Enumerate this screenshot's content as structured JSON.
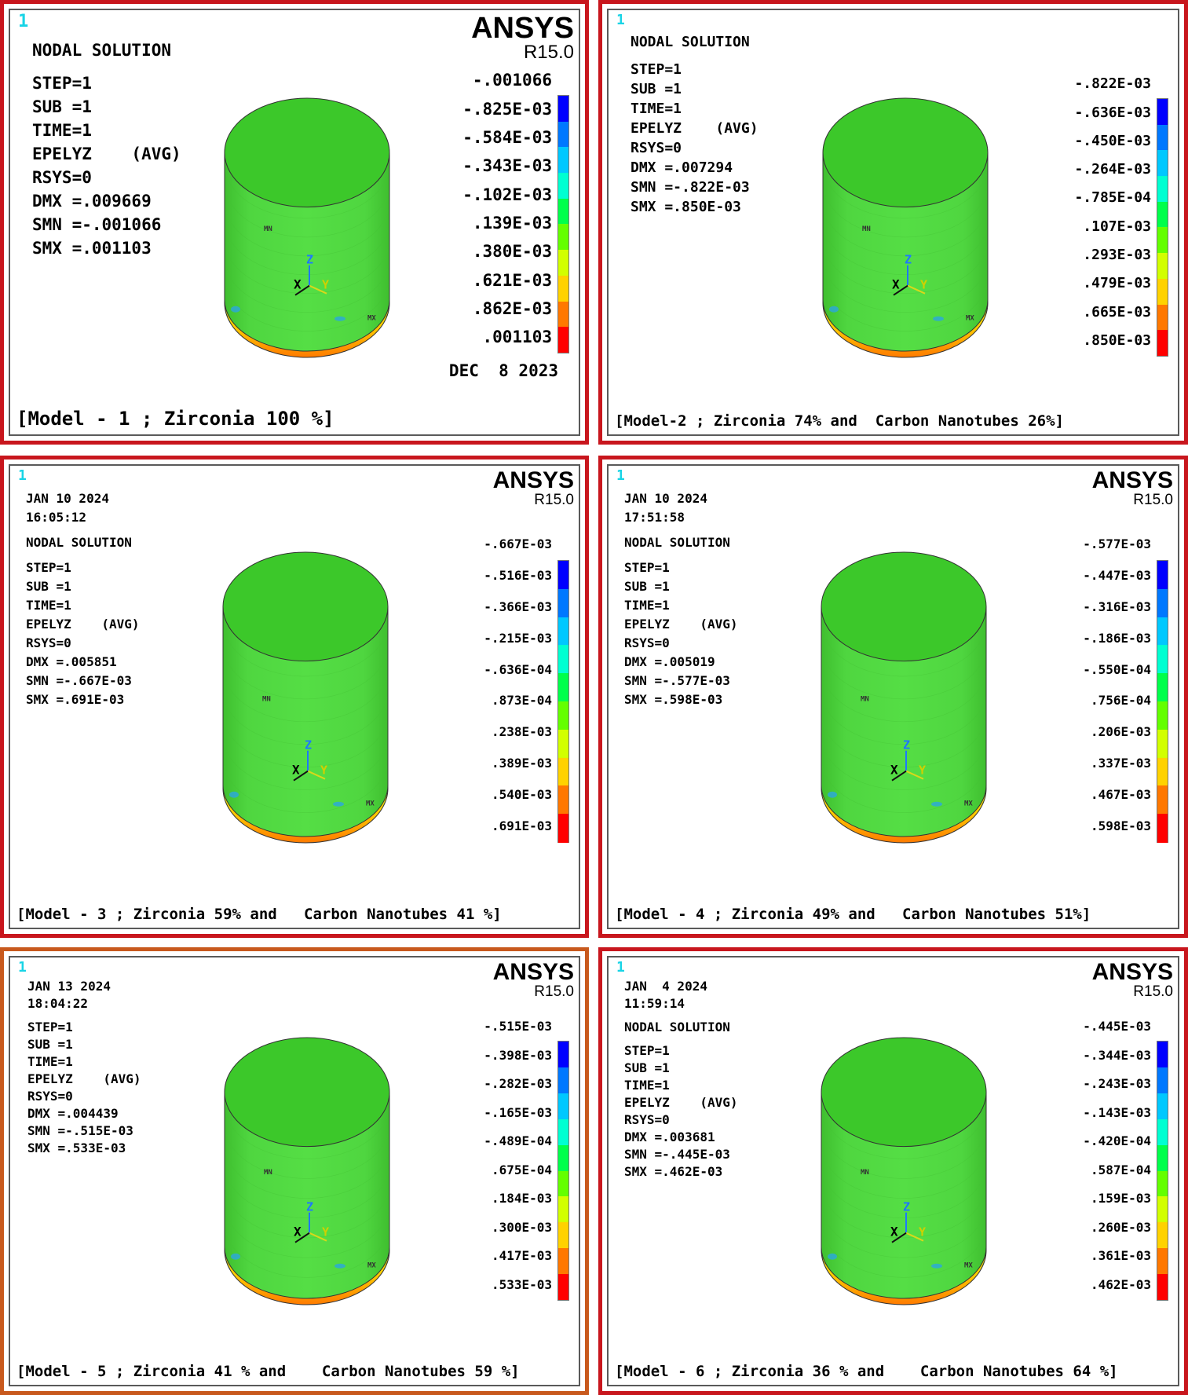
{
  "colors": {
    "panel_border": "#c8161d",
    "panel_border_alt": "#c8591d",
    "window_number": "#18d4e6",
    "contour_bands": [
      "#0000ff",
      "#0078ff",
      "#00c8ff",
      "#00ffd2",
      "#00ff4b",
      "#64ff00",
      "#d2ff00",
      "#ffd200",
      "#ff7800",
      "#ff0000"
    ]
  },
  "panels": [
    {
      "window_number": "1",
      "brand": "ANSYS",
      "release": "R15.0",
      "date": "",
      "time": "",
      "title": "NODAL SOLUTION",
      "lines": [
        "STEP=1",
        "SUB =1",
        "TIME=1",
        "EPELYZ    (AVG)",
        "RSYS=0",
        "DMX =.009669",
        "SMN =-.001066",
        "SMX =.001103"
      ],
      "legend": [
        "-.001066",
        "-.825E-03",
        "-.584E-03",
        "-.343E-03",
        "-.102E-03",
        ".139E-03",
        ".380E-03",
        ".621E-03",
        ".862E-03",
        ".001103"
      ],
      "bottom_date": "DEC  8 2023",
      "caption": "[Model - 1 ; Zirconia 100 %]",
      "tag_mn": "MN",
      "tag_mx": "MX",
      "axis_x": "X",
      "axis_y": "Y",
      "axis_z": "Z"
    },
    {
      "window_number": "1",
      "brand": "",
      "release": "",
      "date": "",
      "time": "",
      "title": "NODAL SOLUTION",
      "lines": [
        "STEP=1",
        "SUB =1",
        "TIME=1",
        "EPELYZ    (AVG)",
        "RSYS=0",
        "DMX =.007294",
        "SMN =-.822E-03",
        "SMX =.850E-03"
      ],
      "legend": [
        "-.822E-03",
        "-.636E-03",
        "-.450E-03",
        "-.264E-03",
        "-.785E-04",
        ".107E-03",
        ".293E-03",
        ".479E-03",
        ".665E-03",
        ".850E-03"
      ],
      "bottom_date": "",
      "caption": "[Model-2 ; Zirconia 74% and  Carbon Nanotubes 26%]",
      "tag_mn": "MN",
      "tag_mx": "MX",
      "axis_x": "X",
      "axis_y": "Y",
      "axis_z": "Z"
    },
    {
      "window_number": "1",
      "brand": "ANSYS",
      "release": "R15.0",
      "date": "JAN 10 2024",
      "time": "16:05:12",
      "title": "NODAL SOLUTION",
      "lines": [
        "STEP=1",
        "SUB =1",
        "TIME=1",
        "EPELYZ    (AVG)",
        "RSYS=0",
        "DMX =.005851",
        "SMN =-.667E-03",
        "SMX =.691E-03"
      ],
      "legend": [
        "-.667E-03",
        "-.516E-03",
        "-.366E-03",
        "-.215E-03",
        "-.636E-04",
        ".873E-04",
        ".238E-03",
        ".389E-03",
        ".540E-03",
        ".691E-03"
      ],
      "bottom_date": "",
      "caption": "[Model - 3 ; Zirconia 59% and   Carbon Nanotubes 41 %]",
      "tag_mn": "MN",
      "tag_mx": "MX",
      "axis_x": "X",
      "axis_y": "Y",
      "axis_z": "Z"
    },
    {
      "window_number": "1",
      "brand": "ANSYS",
      "release": "R15.0",
      "date": "JAN 10 2024",
      "time": "17:51:58",
      "title": "NODAL SOLUTION",
      "lines": [
        "STEP=1",
        "SUB =1",
        "TIME=1",
        "EPELYZ    (AVG)",
        "RSYS=0",
        "DMX =.005019",
        "SMN =-.577E-03",
        "SMX =.598E-03"
      ],
      "legend": [
        "-.577E-03",
        "-.447E-03",
        "-.316E-03",
        "-.186E-03",
        "-.550E-04",
        ".756E-04",
        ".206E-03",
        ".337E-03",
        ".467E-03",
        ".598E-03"
      ],
      "bottom_date": "",
      "caption": "[Model - 4 ; Zirconia 49% and   Carbon Nanotubes 51%]",
      "tag_mn": "MN",
      "tag_mx": "MX",
      "axis_x": "X",
      "axis_y": "Y",
      "axis_z": "Z"
    },
    {
      "window_number": "1",
      "brand": "ANSYS",
      "release": "R15.0",
      "date": "JAN 13 2024",
      "time": "18:04:22",
      "title": "",
      "lines": [
        "STEP=1",
        "SUB =1",
        "TIME=1",
        "EPELYZ    (AVG)",
        "RSYS=0",
        "DMX =.004439",
        "SMN =-.515E-03",
        "SMX =.533E-03"
      ],
      "legend": [
        "-.515E-03",
        "-.398E-03",
        "-.282E-03",
        "-.165E-03",
        "-.489E-04",
        ".675E-04",
        ".184E-03",
        ".300E-03",
        ".417E-03",
        ".533E-03"
      ],
      "bottom_date": "",
      "caption": "[Model - 5 ; Zirconia 41 % and    Carbon Nanotubes 59 %]",
      "tag_mn": "MN",
      "tag_mx": "MX",
      "axis_x": "X",
      "axis_y": "Y",
      "axis_z": "Z"
    },
    {
      "window_number": "1",
      "brand": "ANSYS",
      "release": "R15.0",
      "date": "JAN  4 2024",
      "time": "11:59:14",
      "title": "NODAL SOLUTION",
      "lines": [
        "STEP=1",
        "SUB =1",
        "TIME=1",
        "EPELYZ    (AVG)",
        "RSYS=0",
        "DMX =.003681",
        "SMN =-.445E-03",
        "SMX =.462E-03"
      ],
      "legend": [
        "-.445E-03",
        "-.344E-03",
        "-.243E-03",
        "-.143E-03",
        "-.420E-04",
        ".587E-04",
        ".159E-03",
        ".260E-03",
        ".361E-03",
        ".462E-03"
      ],
      "bottom_date": "",
      "caption": "[Model - 6 ; Zirconia 36 % and    Carbon Nanotubes 64 %]",
      "tag_mn": "MN",
      "tag_mx": "MX",
      "axis_x": "X",
      "axis_y": "Y",
      "axis_z": "Z"
    }
  ]
}
